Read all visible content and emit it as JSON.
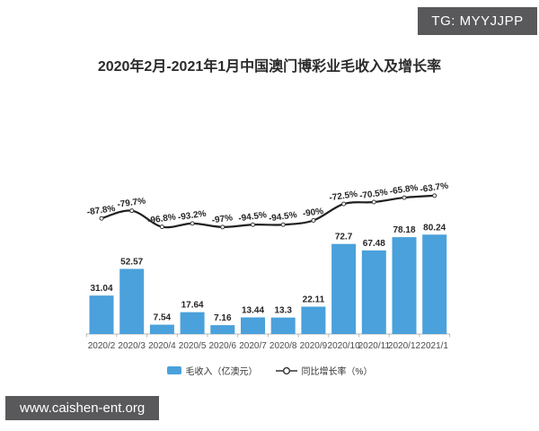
{
  "page": {
    "title": "2020年2月-2021年1月中国澳门博彩业毛收入及增长率",
    "badge": "TG: MYYJJPP",
    "watermark": "www.caishen-ent.org"
  },
  "colors": {
    "bar": "#4aa1db",
    "line": "#1f1f1f",
    "marker_fill": "#ffffff",
    "marker_stroke": "#3a3a3a",
    "badge_bg": "#59595b",
    "watermark_bg": "#59595b",
    "axis": "#b9b9b9",
    "data_label": "#262626",
    "x_label": "#4a4a4a"
  },
  "legend": {
    "items": [
      {
        "label": "毛收入（亿澳元）",
        "marker": "bar-swatch"
      },
      {
        "label": "同比增长率（%）",
        "marker": "line-circle"
      }
    ]
  },
  "chart_data": {
    "type": "bar",
    "combo": "bar+line",
    "title": "2020年2月-2021年1月中国澳门博彩业毛收入及增长率",
    "categories": [
      "2020/2",
      "2020/3",
      "2020/4",
      "2020/5",
      "2020/6",
      "2020/7",
      "2020/8",
      "2020/9",
      "2020/10",
      "2020/11",
      "2020/12",
      "2021/1"
    ],
    "series": [
      {
        "name": "毛收入（亿澳元）",
        "type": "bar",
        "unit": "亿澳元",
        "color": "#4aa1db",
        "values": [
          31.04,
          52.57,
          7.54,
          17.64,
          7.16,
          13.44,
          13.3,
          22.11,
          72.7,
          67.48,
          78.18,
          80.24
        ],
        "labels": [
          "31.04",
          "52.57",
          "7.54",
          "17.64",
          "7.16",
          "13.44",
          "13.3",
          "22.11",
          "72.7",
          "67.48",
          "78.18",
          "80.24"
        ]
      },
      {
        "name": "同比增长率（%）",
        "type": "line",
        "unit": "%",
        "color": "#1f1f1f",
        "values": [
          -87.8,
          -79.7,
          -96.8,
          -93.2,
          -97,
          -94.5,
          -94.5,
          -90,
          -72.5,
          -70.5,
          -65.8,
          -63.7
        ],
        "labels": [
          "-87.8%",
          "-79.7%",
          "-96.8%",
          "-93.2%",
          "-97%",
          "-94.5%",
          "-94.5%",
          "-90%",
          "-72.5%",
          "-70.5%",
          "-65.8%",
          "-63.7%"
        ]
      }
    ],
    "xlabel": "",
    "ylabel": "",
    "y_axis_visible": false,
    "grid": false,
    "legend_position": "bottom",
    "data_labels_shown": true
  }
}
